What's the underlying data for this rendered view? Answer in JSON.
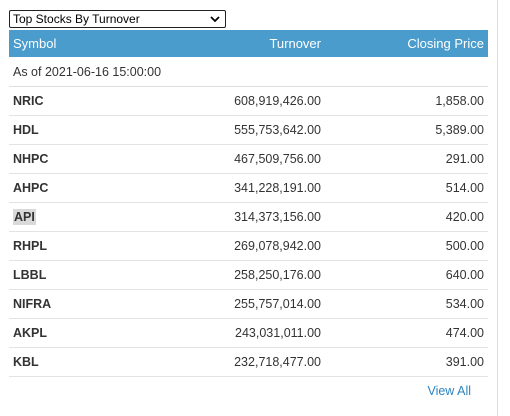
{
  "select": {
    "label": "Top Stocks By Turnover"
  },
  "table": {
    "headers": {
      "symbol": "Symbol",
      "turnover": "Turnover",
      "price": "Closing Price"
    },
    "as_of": "As of 2021-06-16 15:00:00",
    "rows": [
      {
        "symbol": "NRIC",
        "turnover": "608,919,426.00",
        "price": "1,858.00"
      },
      {
        "symbol": "HDL",
        "turnover": "555,753,642.00",
        "price": "5,389.00"
      },
      {
        "symbol": "NHPC",
        "turnover": "467,509,756.00",
        "price": "291.00"
      },
      {
        "symbol": "AHPC",
        "turnover": "341,228,191.00",
        "price": "514.00"
      },
      {
        "symbol": "API",
        "turnover": "314,373,156.00",
        "price": "420.00"
      },
      {
        "symbol": "RHPL",
        "turnover": "269,078,942.00",
        "price": "500.00"
      },
      {
        "symbol": "LBBL",
        "turnover": "258,250,176.00",
        "price": "640.00"
      },
      {
        "symbol": "NIFRA",
        "turnover": "255,757,014.00",
        "price": "534.00"
      },
      {
        "symbol": "AKPL",
        "turnover": "243,031,011.00",
        "price": "474.00"
      },
      {
        "symbol": "KBL",
        "turnover": "232,718,477.00",
        "price": "391.00"
      }
    ]
  },
  "footer": {
    "view_all": "View All"
  },
  "colors": {
    "header_bg": "#4a9ccc",
    "link": "#2b85c1",
    "highlight": "#d9d9d9"
  }
}
